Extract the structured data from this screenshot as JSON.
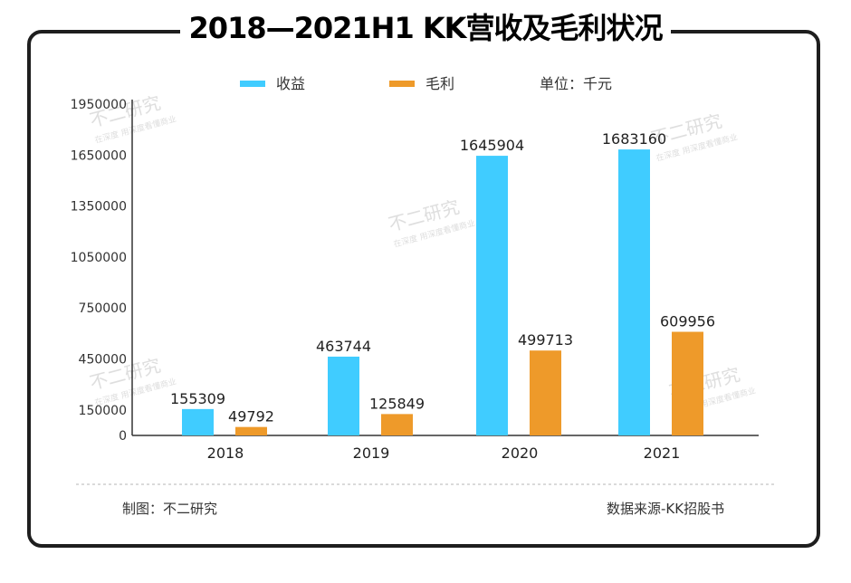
{
  "title": "2018—2021H1 KK营收及毛利状况",
  "footer": {
    "maker": "制图：不二研究",
    "source": "数据来源-KK招股书"
  },
  "watermark": {
    "main": "不二研究",
    "sub": "在深度  用深度看懂商业"
  },
  "colors": {
    "revenue": "#40ccff",
    "profit": "#ee9a2a",
    "axis": "#333333",
    "frame": "#1e1e1e"
  },
  "chart_data": {
    "type": "bar",
    "title": "2018—2021H1 KK营收及毛利状况",
    "unit_label": "单位：千元",
    "categories": [
      "2018",
      "2019",
      "2020",
      "2021"
    ],
    "series": [
      {
        "name": "收益",
        "values": [
          155309,
          463744,
          1645904,
          1683160
        ]
      },
      {
        "name": "毛利",
        "values": [
          49792,
          125849,
          499713,
          609956
        ]
      }
    ],
    "yticks": [
      0,
      150000,
      450000,
      750000,
      1050000,
      1350000,
      1650000,
      1950000
    ],
    "ylim": [
      0,
      1950000
    ],
    "xlabel": "",
    "ylabel": "",
    "grid": false,
    "legend": "top-center"
  }
}
